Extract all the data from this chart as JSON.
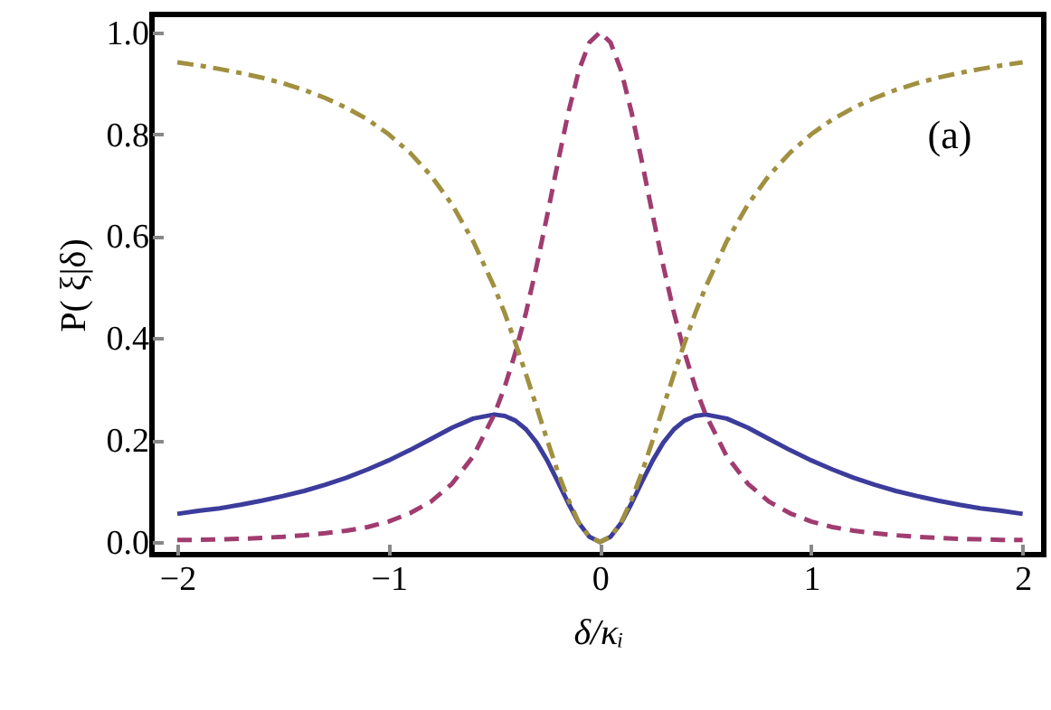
{
  "chart_data": {
    "type": "line",
    "xlabel": "δ/κᵢ",
    "ylabel": "P( ξ|δ)",
    "x": [
      -2,
      -1.9,
      -1.8,
      -1.7,
      -1.6,
      -1.5,
      -1.4,
      -1.3,
      -1.2,
      -1.1,
      -1,
      -0.9,
      -0.8,
      -0.7,
      -0.6,
      -0.5,
      -0.45,
      -0.4,
      -0.35,
      -0.3,
      -0.25,
      -0.2,
      -0.15,
      -0.1,
      -0.05,
      0,
      0.05,
      0.1,
      0.15,
      0.2,
      0.25,
      0.3,
      0.35,
      0.4,
      0.45,
      0.5,
      0.6,
      0.7,
      0.8,
      0.9,
      1,
      1.1,
      1.2,
      1.3,
      1.4,
      1.5,
      1.6,
      1.7,
      1.8,
      1.9,
      2
    ],
    "series": [
      {
        "color": "#3c3c9c",
        "line_style": "solid",
        "values": [
          0.055,
          0.061,
          0.066,
          0.073,
          0.081,
          0.09,
          0.1,
          0.112,
          0.126,
          0.142,
          0.16,
          0.18,
          0.202,
          0.224,
          0.242,
          0.25,
          0.247,
          0.238,
          0.221,
          0.195,
          0.16,
          0.119,
          0.076,
          0.037,
          0.01,
          0,
          0.01,
          0.037,
          0.076,
          0.119,
          0.16,
          0.195,
          0.221,
          0.238,
          0.247,
          0.25,
          0.242,
          0.224,
          0.202,
          0.18,
          0.16,
          0.142,
          0.126,
          0.112,
          0.1,
          0.09,
          0.081,
          0.073,
          0.066,
          0.061,
          0.055
        ]
      },
      {
        "color": "#a03c70",
        "line_style": "dashed",
        "values": [
          0.004,
          0.004,
          0.005,
          0.006,
          0.008,
          0.01,
          0.013,
          0.017,
          0.022,
          0.029,
          0.04,
          0.056,
          0.079,
          0.114,
          0.168,
          0.25,
          0.305,
          0.372,
          0.45,
          0.541,
          0.64,
          0.743,
          0.842,
          0.925,
          0.98,
          1,
          0.98,
          0.925,
          0.842,
          0.743,
          0.64,
          0.541,
          0.45,
          0.372,
          0.305,
          0.25,
          0.168,
          0.114,
          0.079,
          0.056,
          0.04,
          0.029,
          0.022,
          0.017,
          0.013,
          0.01,
          0.008,
          0.006,
          0.005,
          0.004,
          0.004
        ]
      },
      {
        "color": "#a09040",
        "line_style": "dashdot",
        "values": [
          0.941,
          0.935,
          0.928,
          0.92,
          0.911,
          0.9,
          0.887,
          0.871,
          0.852,
          0.829,
          0.8,
          0.764,
          0.719,
          0.662,
          0.59,
          0.5,
          0.448,
          0.39,
          0.329,
          0.265,
          0.2,
          0.138,
          0.083,
          0.038,
          0.01,
          0,
          0.01,
          0.038,
          0.083,
          0.138,
          0.2,
          0.265,
          0.329,
          0.39,
          0.448,
          0.5,
          0.59,
          0.662,
          0.719,
          0.764,
          0.8,
          0.829,
          0.852,
          0.871,
          0.887,
          0.9,
          0.911,
          0.92,
          0.928,
          0.935,
          0.941
        ]
      }
    ],
    "xlim": [
      -2.12,
      2.1
    ],
    "ylim": [
      -0.025,
      1.035
    ],
    "xticks": [
      {
        "value": -2,
        "label": "−2"
      },
      {
        "value": -1,
        "label": "−1"
      },
      0,
      1,
      2
    ],
    "yticks": [
      {
        "value": 0,
        "label": "0.0"
      },
      {
        "value": 0.2,
        "label": "0.2"
      },
      {
        "value": 0.4,
        "label": "0.4"
      },
      {
        "value": 0.6,
        "label": "0.6"
      },
      {
        "value": 0.8,
        "label": "0.8"
      },
      {
        "value": 1,
        "label": "1.0"
      }
    ],
    "annotations": [
      "(a)"
    ]
  }
}
